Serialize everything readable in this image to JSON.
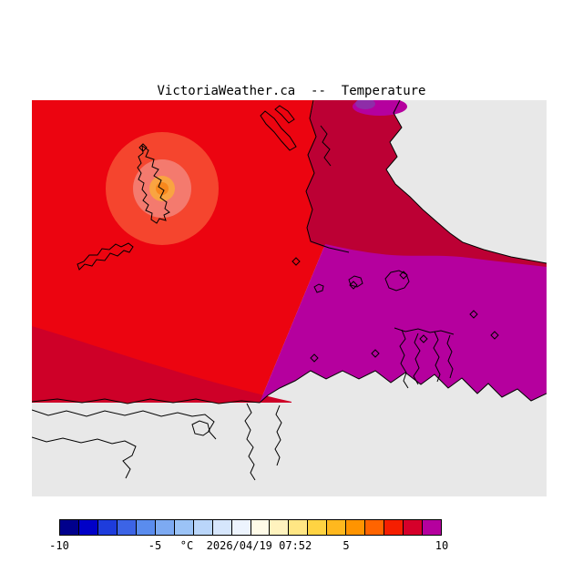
{
  "title": "VictoriaWeather.ca  --  Temperature",
  "colorbar": {
    "min": -10,
    "max": 10,
    "units": "°C",
    "ticks": [
      "-10",
      "-5",
      "5",
      "10"
    ],
    "caption": "°C  2026/04/19 07:52",
    "colors": [
      "#00008C",
      "#0000C8",
      "#1E3CDC",
      "#3C64E6",
      "#5A8CEE",
      "#7DAAF2",
      "#9BC3F6",
      "#BAD6FA",
      "#D6E6FC",
      "#EDF4FE",
      "#FFFBE8",
      "#FFF3BE",
      "#FFE684",
      "#FFD342",
      "#FFB81E",
      "#FF9400",
      "#FF6400",
      "#F51E00",
      "#D6002A",
      "#B5009E"
    ],
    "legend_meaning": "temperature in degrees Celsius"
  },
  "map_colors": {
    "background": "#E8E8E8",
    "red": "#EC0410",
    "dark_red": "#CE0028",
    "crimson": "#BC0034",
    "magenta": "#B5009E",
    "ring_outer": "#F5452E",
    "ring_mid": "#F47A6E",
    "ring_inner": "#F9A441",
    "ring_core": "#F8881C",
    "purple_patch": "#B5009E",
    "violet_patch": "#8E2DA8"
  }
}
